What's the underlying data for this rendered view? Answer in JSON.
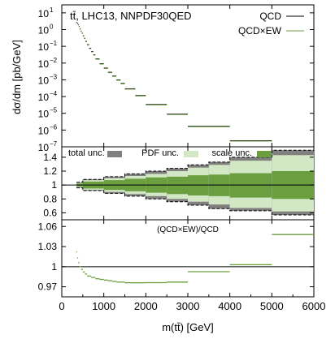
{
  "chart_data": [
    {
      "panel": "main",
      "type": "line",
      "title": "tt̄, LHC13, NNPDF30QED",
      "ylabel": "dσ/dm [pb/GeV]",
      "yscale": "log",
      "ylim": [
        1e-07,
        30
      ],
      "xlim": [
        0,
        6000
      ],
      "yticks": [
        {
          "v": 10,
          "m": "10",
          "e": "1"
        },
        {
          "v": 1,
          "m": "10",
          "e": "0"
        },
        {
          "v": 0.1,
          "m": "10",
          "e": "−1"
        },
        {
          "v": 0.01,
          "m": "10",
          "e": "−2"
        },
        {
          "v": 0.001,
          "m": "10",
          "e": "−3"
        },
        {
          "v": 0.0001,
          "m": "10",
          "e": "−4"
        },
        {
          "v": 1e-05,
          "m": "10",
          "e": "−5"
        },
        {
          "v": 1e-06,
          "m": "10",
          "e": "−6"
        },
        {
          "v": 1e-07,
          "m": "10",
          "e": "−7"
        }
      ],
      "legend_position": "top-right",
      "series": [
        {
          "name": "QCD",
          "color": "#000000"
        },
        {
          "name": "QCD×EW",
          "color": "#6a9e3f"
        }
      ],
      "bins": [
        [
          345,
          365,
          2.6
        ],
        [
          365,
          385,
          2.3
        ],
        [
          385,
          405,
          1.9
        ],
        [
          405,
          425,
          1.5
        ],
        [
          425,
          450,
          1.05
        ],
        [
          450,
          475,
          0.78
        ],
        [
          475,
          500,
          0.58
        ],
        [
          500,
          530,
          0.41
        ],
        [
          530,
          560,
          0.29
        ],
        [
          560,
          600,
          0.19
        ],
        [
          600,
          650,
          0.12
        ],
        [
          650,
          700,
          0.074
        ],
        [
          700,
          750,
          0.047
        ],
        [
          750,
          800,
          0.03
        ],
        [
          800,
          900,
          0.017
        ],
        [
          900,
          1000,
          0.0088
        ],
        [
          1000,
          1100,
          0.0048
        ],
        [
          1100,
          1200,
          0.0027
        ],
        [
          1200,
          1300,
          0.0016
        ],
        [
          1300,
          1400,
          0.00095
        ],
        [
          1400,
          1500,
          0.00058
        ],
        [
          1500,
          1750,
          0.00028
        ],
        [
          1750,
          2000,
          0.00011
        ],
        [
          2000,
          2500,
          3.2e-05
        ],
        [
          2500,
          3000,
          8.5e-06
        ],
        [
          3000,
          4000,
          1.6e-06
        ],
        [
          4000,
          5000,
          2.2e-07
        ],
        [
          5000,
          6000,
          5e-08
        ]
      ]
    },
    {
      "panel": "uncertainty",
      "type": "area",
      "ylim": [
        0.5,
        1.55
      ],
      "yticks": [
        0.6,
        0.8,
        1,
        1.2,
        1.4
      ],
      "legend": [
        {
          "name": "total unc.",
          "color": "#808080"
        },
        {
          "name": "PDF unc.",
          "color": "#d2e7c4"
        },
        {
          "name": "scale unc.",
          "color": "#6a9e3f"
        }
      ],
      "bands": [
        [
          350,
          500,
          0.98,
          1.02,
          0.97,
          1.03,
          0.96,
          1.04
        ],
        [
          500,
          1000,
          0.95,
          1.05,
          0.93,
          1.07,
          0.92,
          1.08
        ],
        [
          1000,
          1500,
          0.93,
          1.07,
          0.9,
          1.1,
          0.88,
          1.12
        ],
        [
          1500,
          2000,
          0.91,
          1.09,
          0.87,
          1.13,
          0.84,
          1.16
        ],
        [
          2000,
          2500,
          0.89,
          1.11,
          0.84,
          1.16,
          0.8,
          1.2
        ],
        [
          2500,
          3000,
          0.87,
          1.12,
          0.8,
          1.2,
          0.76,
          1.24
        ],
        [
          3000,
          3500,
          0.85,
          1.14,
          0.76,
          1.25,
          0.71,
          1.29
        ],
        [
          3500,
          4000,
          0.84,
          1.15,
          0.72,
          1.29,
          0.66,
          1.33
        ],
        [
          4000,
          5000,
          0.82,
          1.17,
          0.67,
          1.35,
          0.63,
          1.4
        ],
        [
          5000,
          6000,
          0.8,
          1.2,
          0.62,
          1.43,
          0.57,
          1.5
        ]
      ]
    },
    {
      "panel": "ratio",
      "type": "line",
      "label": "(QCD×EW)/QCD",
      "xlabel": "m(tt̄) [GeV]",
      "ylim": [
        0.955,
        1.07
      ],
      "yticks": [
        0.97,
        1,
        1.03,
        1.06
      ],
      "xticks": [
        0,
        1000,
        2000,
        3000,
        4000,
        5000,
        6000
      ],
      "bins": [
        [
          345,
          365,
          1.022
        ],
        [
          365,
          390,
          1.013
        ],
        [
          390,
          420,
          1.006
        ],
        [
          420,
          460,
          1.0
        ],
        [
          460,
          500,
          0.996
        ],
        [
          500,
          550,
          0.992
        ],
        [
          550,
          600,
          0.989
        ],
        [
          600,
          700,
          0.986
        ],
        [
          700,
          800,
          0.984
        ],
        [
          800,
          900,
          0.982
        ],
        [
          900,
          1000,
          0.981
        ],
        [
          1000,
          1100,
          0.98
        ],
        [
          1100,
          1200,
          0.979
        ],
        [
          1200,
          1300,
          0.978
        ],
        [
          1300,
          1400,
          0.977
        ],
        [
          1400,
          1500,
          0.977
        ],
        [
          1500,
          1750,
          0.976
        ],
        [
          1750,
          2000,
          0.976
        ],
        [
          2000,
          2500,
          0.9762
        ],
        [
          2500,
          3000,
          0.977
        ],
        [
          3000,
          4000,
          0.9925
        ],
        [
          4000,
          5000,
          1.003
        ],
        [
          5000,
          6000,
          1.048
        ]
      ]
    }
  ]
}
